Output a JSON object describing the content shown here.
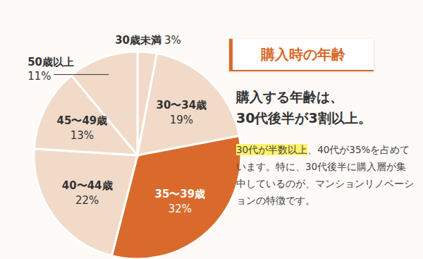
{
  "chart_data": {
    "type": "pie",
    "title": "購入時の年齢",
    "subtitle": [
      "購入する年齢は、",
      "30代後半が3割以上。"
    ],
    "annotations": [
      "30代が半数以上",
      "、40代が35%を占めています。特に、30代後半に購入層が集中しているのが、マンションリノベーションの特徴です。"
    ],
    "categories": [
      "30歳未満",
      "30〜34歳",
      "35〜39歳",
      "40〜44歳",
      "45〜49歳",
      "50歳以上"
    ],
    "values": [
      3,
      19,
      32,
      22,
      13,
      11
    ],
    "value_labels": [
      "3%",
      "19%",
      "32%",
      "22%",
      "13%",
      "11%"
    ],
    "colors": [
      "#f2dac8",
      "#f2dac8",
      "#d96a2c",
      "#f2dac8",
      "#f2dac8",
      "#f2dac8"
    ],
    "data_labels": true
  }
}
